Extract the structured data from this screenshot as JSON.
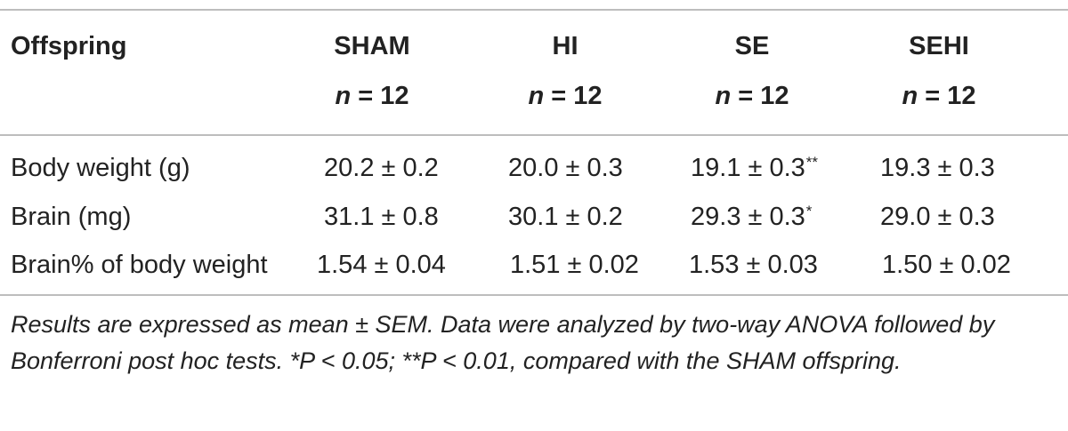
{
  "header": {
    "first_col": "Offspring",
    "groups": [
      {
        "name": "SHAM",
        "n_label": "n",
        "n_value": "= 12"
      },
      {
        "name": "HI",
        "n_label": "n",
        "n_value": "= 12"
      },
      {
        "name": "SE",
        "n_label": "n",
        "n_value": "= 12"
      },
      {
        "name": "SEHI",
        "n_label": "n",
        "n_value": "= 12"
      }
    ]
  },
  "rows": [
    {
      "label": "Body weight (g)",
      "values": [
        {
          "v": "20.2 ± 0.2",
          "sig": ""
        },
        {
          "v": "20.0 ± 0.3",
          "sig": ""
        },
        {
          "v": "19.1 ± 0.3",
          "sig": "**"
        },
        {
          "v": "19.3 ± 0.3",
          "sig": ""
        }
      ]
    },
    {
      "label": "Brain (mg)",
      "values": [
        {
          "v": "31.1 ± 0.8",
          "sig": ""
        },
        {
          "v": "30.1 ± 0.2",
          "sig": ""
        },
        {
          "v": "29.3 ± 0.3",
          "sig": "*"
        },
        {
          "v": "29.0 ± 0.3",
          "sig": ""
        }
      ]
    },
    {
      "label": "Brain% of body weight",
      "values": [
        {
          "v": "1.54 ± 0.04",
          "sig": ""
        },
        {
          "v": "1.51 ± 0.02",
          "sig": ""
        },
        {
          "v": "1.53 ± 0.03",
          "sig": ""
        },
        {
          "v": "1.50 ± 0.02",
          "sig": ""
        }
      ]
    }
  ],
  "footnote": "Results are expressed as mean ± SEM. Data were analyzed by two-way ANOVA followed by Bonferroni post hoc tests. *P < 0.05; **P < 0.01, compared with the SHAM offspring."
}
